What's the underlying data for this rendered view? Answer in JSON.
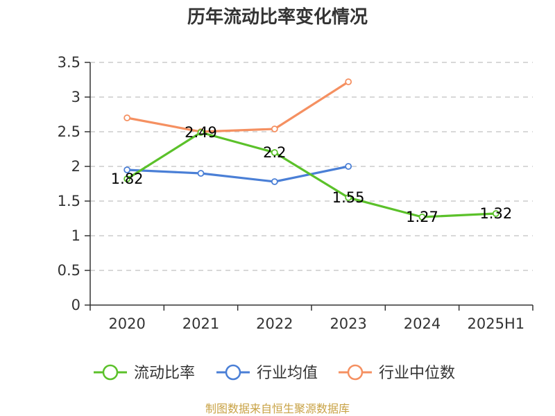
{
  "chart_data": {
    "type": "line",
    "title": "历年流动比率变化情况",
    "categories": [
      "2020",
      "2021",
      "2022",
      "2023",
      "2024",
      "2025H1"
    ],
    "ylim": [
      0,
      3.5
    ],
    "yticks": [
      "0",
      "0.5",
      "1",
      "1.5",
      "2",
      "2.5",
      "3",
      "3.5"
    ],
    "grid": true,
    "legend_position": "bottom",
    "series": [
      {
        "name": "流动比率",
        "color": "#5bc12a",
        "values": [
          1.82,
          2.49,
          2.2,
          1.55,
          1.27,
          1.32
        ],
        "labels": [
          "1.82",
          "2.49",
          "2.2",
          "1.55",
          "1.27",
          "1.32"
        ]
      },
      {
        "name": "行业均值",
        "color": "#4a7fd6",
        "values": [
          1.95,
          1.9,
          1.78,
          2.0,
          null,
          null
        ]
      },
      {
        "name": "行业中位数",
        "color": "#f59061",
        "values": [
          2.7,
          2.5,
          2.54,
          3.22,
          null,
          null
        ]
      }
    ]
  },
  "footer": {
    "source": "制图数据来自恒生聚源数据库"
  }
}
